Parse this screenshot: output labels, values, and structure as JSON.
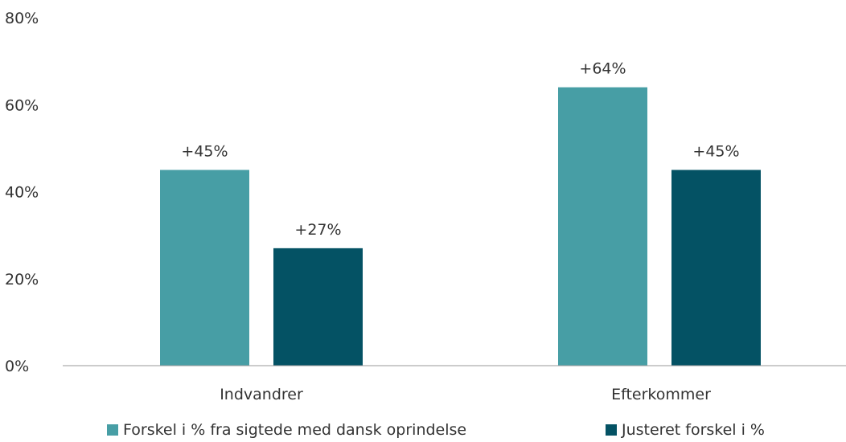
{
  "chart_data": {
    "type": "bar",
    "categories": [
      "Indvandrer",
      "Efterkommer"
    ],
    "series": [
      {
        "name": "Forskel i % fra sigtede med dansk oprindelse",
        "values": [
          45,
          64
        ],
        "labels": [
          "+45%",
          "+64%"
        ],
        "color": "#479ea5"
      },
      {
        "name": "Justeret forskel i %",
        "values": [
          27,
          45
        ],
        "labels": [
          "+27%",
          "+45%"
        ],
        "color": "#045264"
      }
    ],
    "ylim": [
      0,
      80
    ],
    "yticks": [
      0,
      20,
      40,
      60,
      80
    ],
    "ytick_labels": [
      "0%",
      "20%",
      "40%",
      "60%",
      "80%"
    ],
    "title": "",
    "xlabel": "",
    "ylabel": "",
    "grid": false,
    "legend_position": "bottom"
  }
}
